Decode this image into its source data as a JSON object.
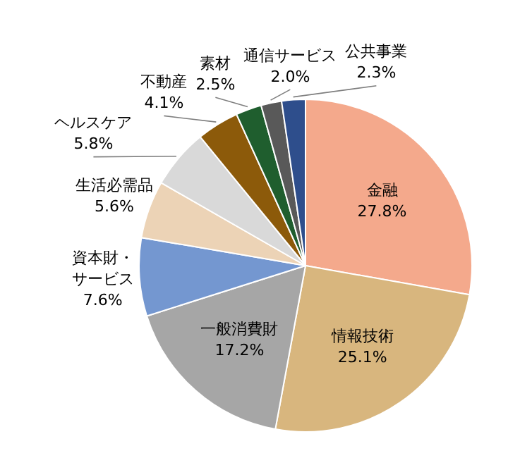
{
  "chart_data": {
    "type": "pie",
    "categories": [
      "金融",
      "情報技術",
      "一般消費財",
      "資本財・サービス",
      "生活必需品",
      "ヘルスケア",
      "不動産",
      "素材",
      "通信サービス",
      "公共事業"
    ],
    "values": [
      27.8,
      25.1,
      17.2,
      7.6,
      5.6,
      5.8,
      4.1,
      2.5,
      2.0,
      2.3
    ],
    "value_labels": [
      "27.8%",
      "25.1%",
      "17.2%",
      "7.6%",
      "5.6%",
      "5.8%",
      "4.1%",
      "2.5%",
      "2.0%",
      "2.3%"
    ],
    "colors": [
      "#f4a98c",
      "#d8b67e",
      "#a6a6a6",
      "#7497d0",
      "#ecd3b6",
      "#d9d9d9",
      "#8c5a0a",
      "#1f5e2e",
      "#595959",
      "#2e4e8c"
    ]
  }
}
